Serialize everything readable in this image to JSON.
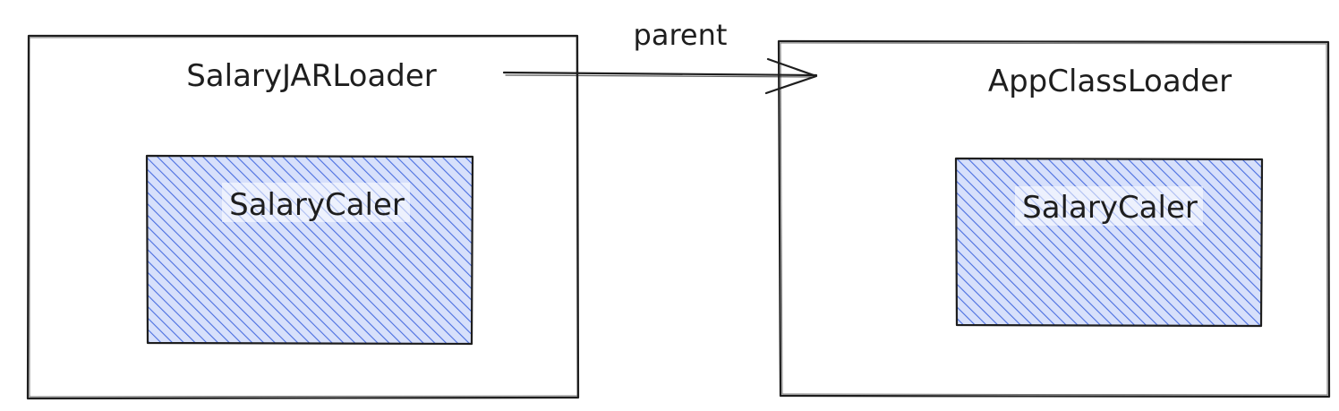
{
  "diagram": {
    "edge_label": "parent",
    "left_loader": {
      "title": "SalaryJARLoader",
      "inner_class": "SalaryCaler"
    },
    "right_loader": {
      "title": "AppClassLoader",
      "inner_class": "SalaryCaler"
    }
  },
  "colors": {
    "stroke": "#1e1e1e",
    "hatch": "#4a6ee0",
    "hatch_fill": "#d7e0fb",
    "background": "#ffffff"
  }
}
